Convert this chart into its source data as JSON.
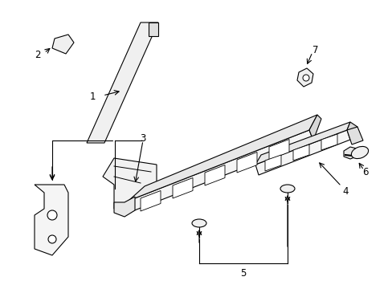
{
  "background_color": "#ffffff",
  "line_color": "#000000",
  "lw": 0.8,
  "figsize": [
    4.89,
    3.6
  ],
  "dpi": 100
}
